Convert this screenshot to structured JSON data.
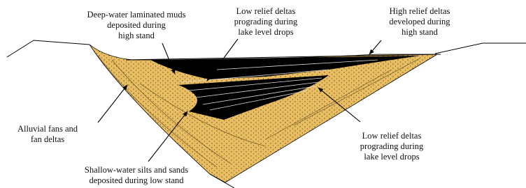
{
  "labels": [
    {
      "lines": [
        "Deep-water laminated muds",
        "deposited during",
        "high stand"
      ]
    },
    {
      "lines": [
        "Low relief deltas",
        "prograding during",
        "lake level drops"
      ]
    },
    {
      "lines": [
        "High relief deltas",
        "developed during",
        "high stand"
      ]
    },
    {
      "lines": [
        "Alluvial fans and",
        "fan deltas"
      ]
    },
    {
      "lines": [
        "Shallow-water silts and sands",
        "deposited during low stand"
      ]
    },
    {
      "lines": [
        "Low relief deltas",
        "prograding during",
        "lake level drops"
      ]
    }
  ]
}
